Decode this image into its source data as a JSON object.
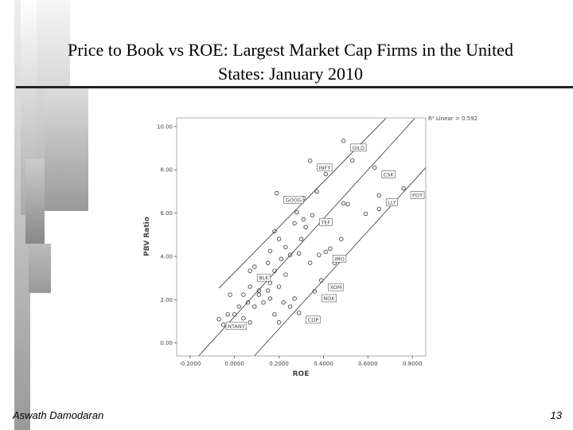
{
  "chart_data": {
    "type": "scatter",
    "title": "Price to Book vs ROE: Largest Market Cap Firms in the United States: January 2010",
    "x_label": "ROE",
    "y_label": "PBV Ratio",
    "annotation": "R² Linear = 0.592",
    "xlim": [
      -0.26,
      0.86
    ],
    "ylim": [
      -0.6,
      10.4
    ],
    "xticks": [
      {
        "value": -0.2,
        "label": "-0.2000"
      },
      {
        "value": 0,
        "label": "0.0000"
      },
      {
        "value": 0.2,
        "label": "0.2000"
      },
      {
        "value": 0.4,
        "label": "0.4000"
      },
      {
        "value": 0.6,
        "label": "0.6000"
      },
      {
        "value": 0.8,
        "label": "0.8000"
      }
    ],
    "yticks": [
      {
        "value": 0,
        "label": "0.00"
      },
      {
        "value": 2,
        "label": "2.00"
      },
      {
        "value": 4,
        "label": "4.00"
      },
      {
        "value": 6,
        "label": "6.00"
      },
      {
        "value": 8,
        "label": "8.00"
      },
      {
        "value": 10,
        "label": "10.00"
      }
    ],
    "color": "#333333",
    "x": [
      0.49,
      0.53,
      0.34,
      0.41,
      0.63,
      0.76,
      0.65,
      0.19,
      0.35,
      0.41,
      0.07,
      0.39,
      0.36,
      0.29,
      -0.07,
      0.25,
      0.31,
      0.37,
      0.49,
      0.51,
      0.59,
      0.65,
      0.28,
      0.18,
      0.2,
      0.27,
      0.32,
      0.3,
      0.23,
      0.16,
      0.25,
      0.29,
      0.34,
      0.21,
      0.15,
      0.09,
      0.18,
      0.23,
      0.13,
      0.16,
      0.2,
      0.11,
      0.07,
      0.04,
      0.06,
      0.09,
      0.13,
      0.02,
      0.0,
      0.04,
      0.07,
      -0.03,
      0.18,
      0.16,
      0.22,
      0.27,
      0.25,
      0.45,
      0.43,
      0.38,
      0.48,
      0.31,
      0.11,
      0.15,
      -0.02,
      -0.05,
      0.2
    ],
    "values": [
      9.34,
      8.43,
      8.42,
      7.8,
      8.1,
      7.14,
      6.81,
      6.92,
      5.9,
      4.21,
      3.33,
      2.89,
      2.38,
      1.39,
      1.1,
      6.63,
      6.7,
      7.0,
      6.45,
      6.41,
      5.97,
      6.19,
      6.04,
      5.16,
      4.8,
      5.53,
      5.35,
      4.8,
      4.43,
      4.25,
      4.07,
      4.14,
      3.7,
      3.88,
      3.7,
      3.52,
      3.33,
      3.15,
      2.97,
      2.78,
      2.6,
      2.42,
      2.6,
      2.23,
      1.87,
      1.68,
      1.87,
      1.68,
      1.32,
      1.14,
      0.95,
      1.32,
      1.32,
      2.05,
      1.87,
      2.05,
      1.68,
      3.7,
      4.36,
      4.07,
      4.8,
      5.71,
      2.23,
      2.42,
      2.23,
      0.84,
      0.95
    ],
    "point_labels": [
      "GILD",
      null,
      "INFY",
      null,
      "CSK",
      "POT",
      "LLY",
      "GOOG",
      "TEF",
      "IMO",
      "BLK",
      "XOM",
      "NOK",
      "COP",
      "NTANY",
      null,
      null,
      null,
      null,
      null,
      null,
      null,
      null,
      null,
      null,
      null,
      null,
      null,
      null,
      null,
      null,
      null,
      null,
      null,
      null,
      null,
      null,
      null,
      null,
      null,
      null,
      null,
      null,
      null,
      null,
      null,
      null,
      null,
      null,
      null,
      null,
      null,
      null,
      null,
      null,
      null,
      null,
      null,
      null,
      null,
      null,
      null,
      null,
      null,
      null,
      null,
      null
    ],
    "fit_lines": [
      {
        "x": [
          -0.07,
          0.68
        ],
        "y": [
          2.53,
          10.37
        ]
      },
      {
        "x": [
          -0.16,
          0.81
        ],
        "y": [
          -0.59,
          10.37
        ]
      },
      {
        "x": [
          0.09,
          0.86
        ],
        "y": [
          -0.59,
          8.1
        ]
      }
    ]
  },
  "footer": {
    "author": "Aswath Damodaran",
    "page": "13"
  }
}
